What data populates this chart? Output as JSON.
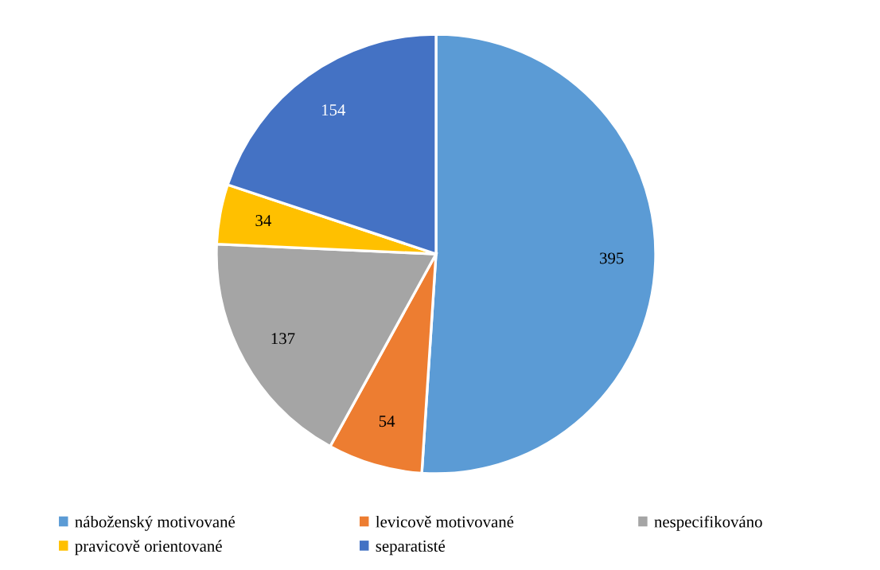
{
  "chart_data": {
    "type": "pie",
    "categories": [
      "náboženský motivované",
      "levicově motivované",
      "nespecifikováno",
      "pravicově orientované",
      "separatisté"
    ],
    "values": [
      395,
      54,
      137,
      34,
      154
    ],
    "colors": [
      "#5b9bd5",
      "#ed7d31",
      "#a5a5a5",
      "#ffc000",
      "#4472c4"
    ],
    "data_labels": true,
    "legend": "bottom"
  }
}
